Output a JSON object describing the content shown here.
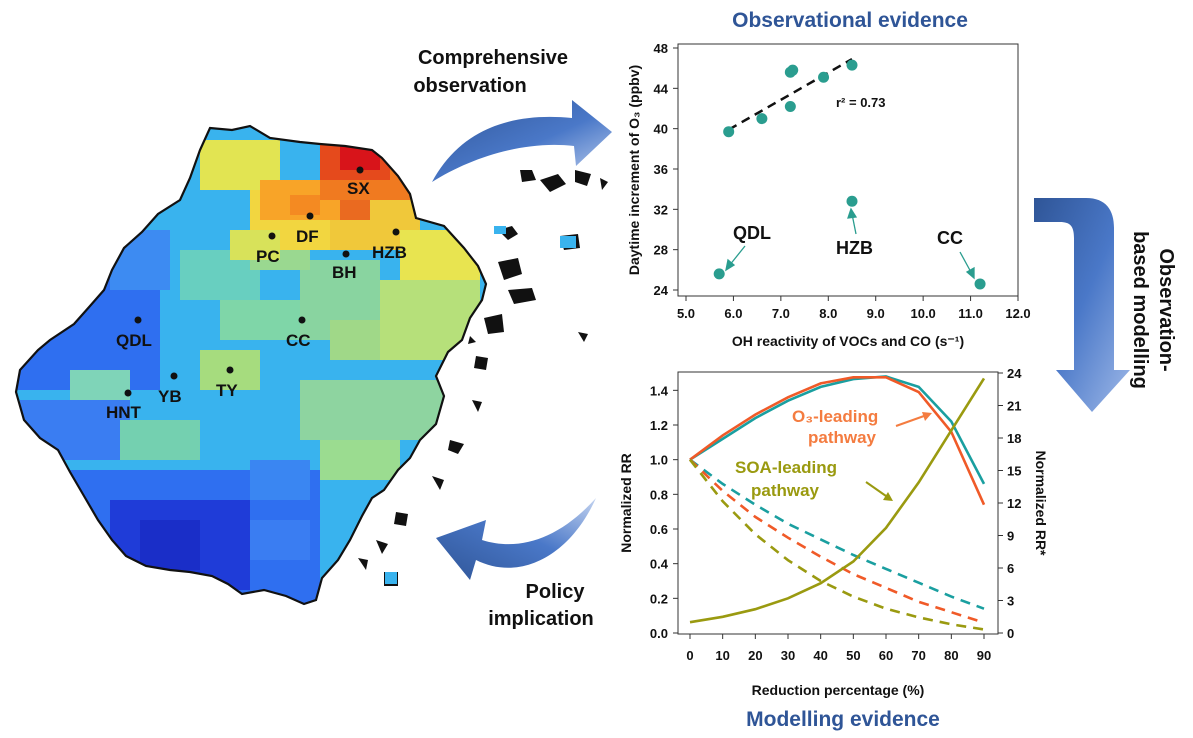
{
  "headers": {
    "observational": "Observational evidence",
    "modelling": "Modelling evidence"
  },
  "flow_labels": {
    "comprehensive_line1": "Comprehensive",
    "comprehensive_line2": "observation",
    "obm_line1": "Observation-",
    "obm_line2": "based modelling",
    "policy_line1": "Policy",
    "policy_line2": "implication"
  },
  "map": {
    "sites": [
      {
        "name": "SX"
      },
      {
        "name": "DF"
      },
      {
        "name": "PC"
      },
      {
        "name": "HZB"
      },
      {
        "name": "BH"
      },
      {
        "name": "QDL"
      },
      {
        "name": "CC"
      },
      {
        "name": "YB"
      },
      {
        "name": "TY"
      },
      {
        "name": "HNT"
      }
    ],
    "colors": {
      "outline": "#111111",
      "grid_low": "#1f3cd8",
      "grid_high": "#e31a1c"
    }
  },
  "chart_data": [
    {
      "type": "scatter",
      "xlabel": "OH reactivity of VOCs and CO (s⁻¹)",
      "ylabel": "Daytime increment of O₃ (ppbv)",
      "xlim": [
        5.0,
        12.0
      ],
      "ylim": [
        24,
        48
      ],
      "xticks": [
        "5.0",
        "6.0",
        "7.0",
        "8.0",
        "9.0",
        "10.0",
        "11.0",
        "12.0"
      ],
      "yticks": [
        "24",
        "28",
        "32",
        "36",
        "40",
        "44",
        "48"
      ],
      "points": [
        {
          "x": 5.9,
          "y": 39.7
        },
        {
          "x": 6.6,
          "y": 41.0
        },
        {
          "x": 7.2,
          "y": 42.2
        },
        {
          "x": 7.2,
          "y": 45.6
        },
        {
          "x": 7.25,
          "y": 45.8
        },
        {
          "x": 7.9,
          "y": 45.1
        },
        {
          "x": 8.5,
          "y": 46.3
        },
        {
          "x": 8.5,
          "y": 32.8
        },
        {
          "x": 5.7,
          "y": 25.6
        },
        {
          "x": 11.2,
          "y": 24.6
        }
      ],
      "fit": {
        "x": [
          5.9,
          8.5
        ],
        "y": [
          39.9,
          46.9
        ],
        "r2_label": "r² = 0.73"
      },
      "annotations": [
        {
          "label": "QDL",
          "target": {
            "x": 5.7,
            "y": 25.6
          }
        },
        {
          "label": "HZB",
          "target": {
            "x": 8.5,
            "y": 32.8
          }
        },
        {
          "label": "CC",
          "target": {
            "x": 11.2,
            "y": 24.6
          }
        }
      ],
      "colors": {
        "points": "#2a9d8f",
        "fit": "#111111"
      }
    },
    {
      "type": "line",
      "xlabel": "Reduction percentage (%)",
      "ylabel": "Normalized RR",
      "ylabel_right": "Normalized RR*",
      "xlim": [
        0,
        90
      ],
      "ylim": [
        0.0,
        1.5
      ],
      "ylim_right": [
        0,
        24
      ],
      "xticks": [
        "0",
        "10",
        "20",
        "30",
        "40",
        "50",
        "60",
        "70",
        "80",
        "90"
      ],
      "yticks": [
        "0.0",
        "0.2",
        "0.4",
        "0.6",
        "0.8",
        "1.0",
        "1.2",
        "1.4"
      ],
      "yticks_right": [
        "0",
        "3",
        "6",
        "9",
        "12",
        "15",
        "18",
        "21",
        "24"
      ],
      "x": [
        0,
        10,
        20,
        30,
        40,
        50,
        60,
        70,
        80,
        90
      ],
      "series": [
        {
          "color": "#1a9fa0",
          "style": "solid",
          "axis": "left",
          "values": [
            1.0,
            1.12,
            1.24,
            1.34,
            1.42,
            1.465,
            1.48,
            1.42,
            1.22,
            0.86
          ]
        },
        {
          "color": "#f05a28",
          "style": "solid",
          "axis": "left",
          "values": [
            1.0,
            1.14,
            1.26,
            1.36,
            1.44,
            1.475,
            1.475,
            1.39,
            1.16,
            0.74
          ]
        },
        {
          "color": "#1a9fa0",
          "style": "dashed",
          "axis": "left",
          "values": [
            1.0,
            0.86,
            0.74,
            0.63,
            0.54,
            0.45,
            0.37,
            0.29,
            0.21,
            0.14
          ]
        },
        {
          "color": "#f05a28",
          "style": "dashed",
          "axis": "left",
          "values": [
            1.0,
            0.82,
            0.67,
            0.55,
            0.44,
            0.34,
            0.26,
            0.18,
            0.12,
            0.06
          ]
        },
        {
          "color": "#9a9a10",
          "style": "dashed",
          "axis": "left",
          "values": [
            1.0,
            0.76,
            0.57,
            0.42,
            0.3,
            0.21,
            0.14,
            0.09,
            0.05,
            0.02
          ]
        },
        {
          "color": "#9a9a10",
          "style": "solid",
          "axis": "right",
          "values": [
            1.0,
            1.5,
            2.2,
            3.2,
            4.6,
            6.6,
            9.7,
            13.9,
            18.7,
            23.5
          ]
        }
      ],
      "labels": {
        "o3_line1": "O₃-leading",
        "o3_line2": "pathway",
        "soa_line1": "SOA-leading",
        "soa_line2": "pathway"
      }
    }
  ]
}
